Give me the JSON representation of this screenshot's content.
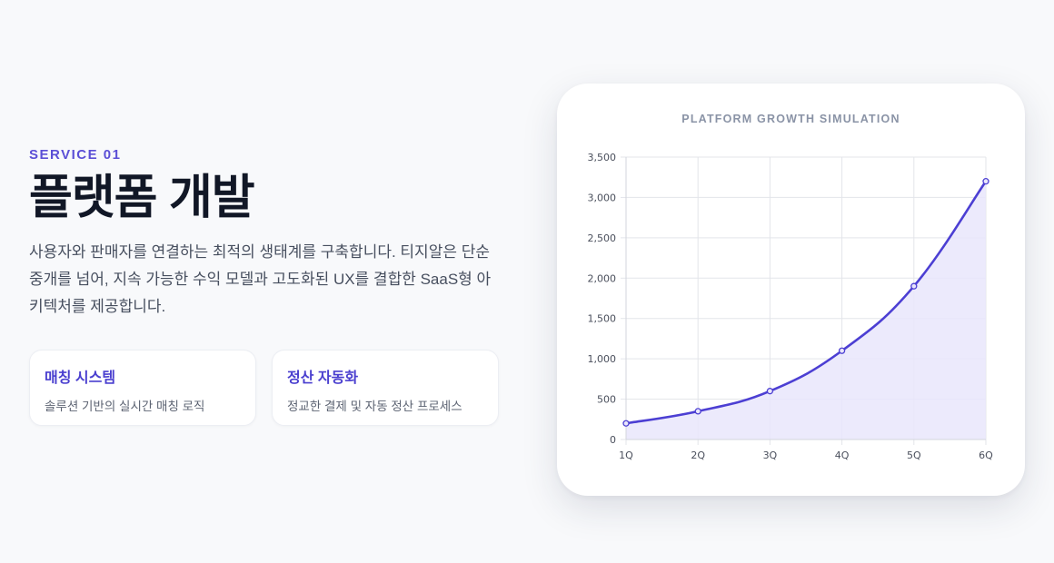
{
  "service": {
    "eyebrow": "SERVICE 01",
    "title": "플랫폼 개발",
    "description": "사용자와 판매자를 연결하는 최적의 생태계를 구축합니다. 티지알은 단순 중개를 넘어, 지속 가능한 수익 모델과 고도화된 UX를 결합한 SaaS형 아키텍처를 제공합니다."
  },
  "features": [
    {
      "title": "매칭 시스템",
      "description": "솔루션 기반의 실시간 매칭 로직"
    },
    {
      "title": "정산 자동화",
      "description": "정교한 결제 및 자동 정산 프로세스"
    }
  ],
  "colors": {
    "accent": "#5b4fd6",
    "line": "#4c3fd3",
    "area": "#e9e6fb",
    "grid": "#e3e5ea"
  },
  "chart_data": {
    "type": "area",
    "title": "PLATFORM GROWTH SIMULATION",
    "categories": [
      "1Q",
      "2Q",
      "3Q",
      "4Q",
      "5Q",
      "6Q"
    ],
    "values": [
      200,
      350,
      600,
      1100,
      1900,
      3200
    ],
    "ylim": [
      0,
      3500
    ],
    "yticks": [
      0,
      500,
      1000,
      1500,
      2000,
      2500,
      3000,
      3500
    ],
    "ytick_labels": [
      "0",
      "500",
      "1,000",
      "1,500",
      "2,000",
      "2,500",
      "3,000",
      "3,500"
    ],
    "grid": true,
    "legend": "none"
  }
}
